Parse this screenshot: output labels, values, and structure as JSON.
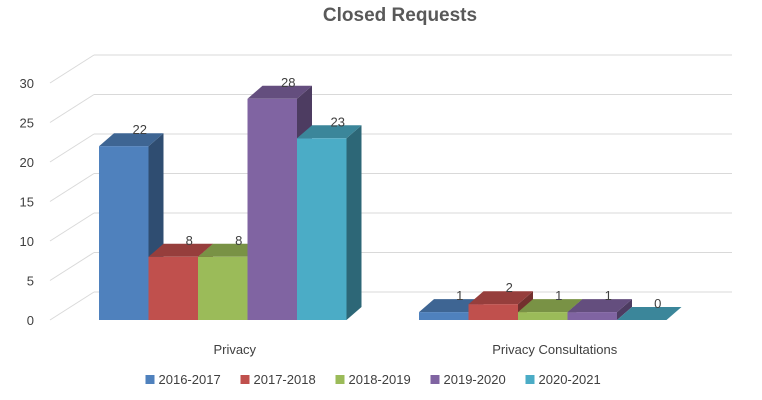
{
  "chart_data": {
    "type": "bar",
    "title": "Closed Requests",
    "categories": [
      "Privacy",
      "Privacy Consultations"
    ],
    "series": [
      {
        "name": "2016-2017",
        "values": [
          22,
          1
        ],
        "color": "#4F81BD"
      },
      {
        "name": "2017-2018",
        "values": [
          8,
          2
        ],
        "color": "#C0504D"
      },
      {
        "name": "2018-2019",
        "values": [
          8,
          1
        ],
        "color": "#9BBB59"
      },
      {
        "name": "2019-2020",
        "values": [
          28,
          1
        ],
        "color": "#8064A2"
      },
      {
        "name": "2020-2021",
        "values": [
          23,
          0
        ],
        "color": "#4BACC6"
      }
    ],
    "yticks": [
      "0",
      "5",
      "10",
      "15",
      "20",
      "25",
      "30"
    ],
    "ylim": [
      0,
      30
    ],
    "grid": true,
    "legend_position": "bottom",
    "style": "3d-clustered-column"
  }
}
